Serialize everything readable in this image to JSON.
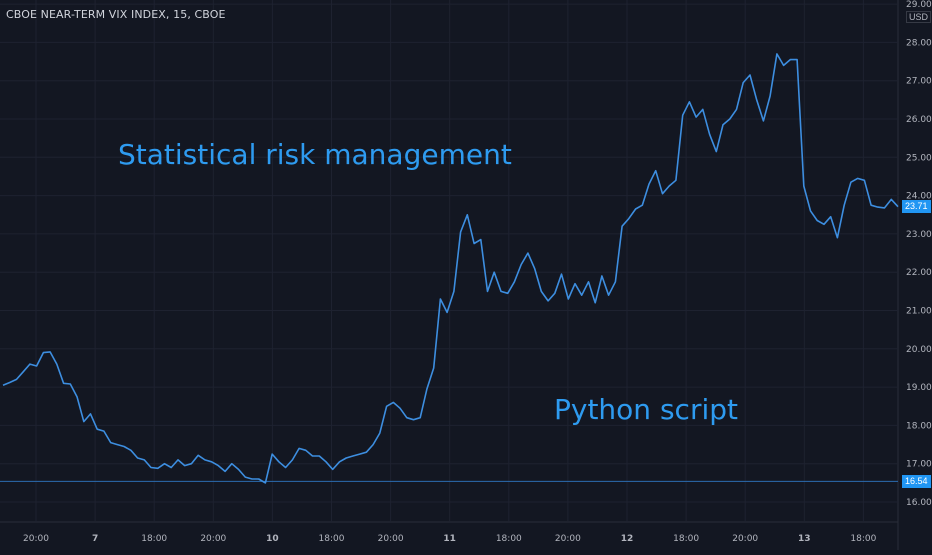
{
  "title": "CBOE NEAR-TERM VIX INDEX, 15, CBOE",
  "annotations": [
    "Statistical risk management",
    "Python script"
  ],
  "colors": {
    "background": "#131722",
    "grid": "#1e2230",
    "line": "#3d8ee0",
    "accent": "#2e9bf0",
    "axis_text": "#b2b5be",
    "price_tag_bg": "#2196f3"
  },
  "chart_data": {
    "type": "line",
    "grid": true,
    "ylim": [
      15.6,
      29.0
    ],
    "y_axis_unit": "USD",
    "y_ticks": [
      "16.00",
      "17.00",
      "18.00",
      "19.00",
      "20.00",
      "21.00",
      "22.00",
      "23.00",
      "24.00",
      "25.00",
      "26.00",
      "27.00",
      "28.00",
      "29.00"
    ],
    "x_tick_labels": [
      "20:00",
      "7",
      "18:00",
      "20:00",
      "10",
      "18:00",
      "20:00",
      "11",
      "18:00",
      "20:00",
      "12",
      "18:00",
      "20:00",
      "13",
      "18:00"
    ],
    "x_tick_bold": [
      "7",
      "10",
      "11",
      "12",
      "13"
    ],
    "horizontal_line": 16.54,
    "last_value": 23.71,
    "series": [
      {
        "values": [
          19.05,
          19.12,
          19.2,
          19.4,
          19.6,
          19.55,
          19.9,
          19.92,
          19.6,
          19.1,
          19.08,
          18.75,
          18.1,
          18.3,
          17.9,
          17.85,
          17.55,
          17.5,
          17.45,
          17.35,
          17.15,
          17.1,
          16.9,
          16.88,
          17.0,
          16.9,
          17.1,
          16.95,
          17.0,
          17.22,
          17.1,
          17.05,
          16.95,
          16.8,
          17.0,
          16.85,
          16.65,
          16.6,
          16.6,
          16.5,
          17.25,
          17.05,
          16.9,
          17.1,
          17.4,
          17.35,
          17.2,
          17.2,
          17.05,
          16.85,
          17.05,
          17.15,
          17.2,
          17.25,
          17.3,
          17.5,
          17.8,
          18.5,
          18.6,
          18.45,
          18.2,
          18.15,
          18.2,
          18.95,
          19.5,
          21.3,
          20.95,
          21.5,
          23.05,
          23.5,
          22.75,
          22.85,
          21.5,
          22.0,
          21.5,
          21.45,
          21.75,
          22.2,
          22.5,
          22.1,
          21.5,
          21.25,
          21.45,
          21.95,
          21.3,
          21.7,
          21.4,
          21.75,
          21.2,
          21.9,
          21.4,
          21.75,
          23.2,
          23.4,
          23.65,
          23.75,
          24.3,
          24.65,
          24.05,
          24.25,
          24.4,
          26.1,
          26.45,
          26.05,
          26.25,
          25.6,
          25.15,
          25.85,
          26.0,
          26.25,
          26.95,
          27.15,
          26.5,
          25.95,
          26.6,
          27.7,
          27.4,
          27.55,
          27.55,
          24.25,
          23.6,
          23.35,
          23.25,
          23.45,
          22.9,
          23.75,
          24.35,
          24.45,
          24.4,
          23.75,
          23.7,
          23.68,
          23.9,
          23.71
        ]
      }
    ]
  }
}
